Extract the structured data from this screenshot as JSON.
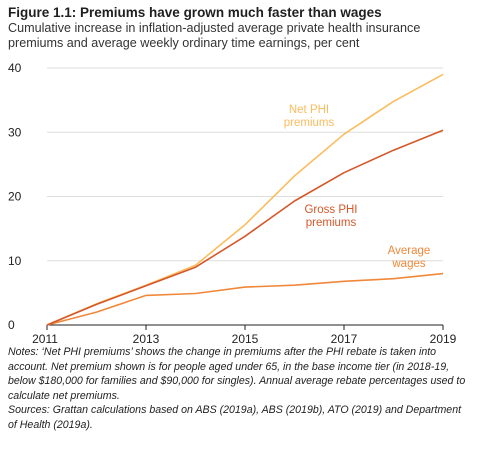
{
  "figure": {
    "title": "Figure 1.1: Premiums have grown much faster than wages",
    "subtitle": "Cumulative increase in inflation-adjusted average private health insurance premiums and average weekly ordinary time earnings, per cent"
  },
  "notes": "Notes: ‘Net PHI premiums’ shows the change in premiums after the PHI rebate is taken into account. Net premium shown is for people aged under 65, in the base income tier (in 2018-19, below $180,000 for families and $90,000 for singles). Annual average rebate percentages used to calculate net premiums.",
  "sources": "Sources: Grattan calculations based on ABS (2019a), ABS (2019b), ATO (2019) and Department of Health (2019a).",
  "chart_data": {
    "type": "line",
    "title": "Figure 1.1: Premiums have grown much faster than wages",
    "xlabel": "",
    "ylabel": "",
    "x": [
      2011,
      2012,
      2013,
      2014,
      2015,
      2016,
      2017,
      2018,
      2019
    ],
    "x_ticks": [
      "2011",
      "2013",
      "2015",
      "2017",
      "2019"
    ],
    "x_tick_values": [
      2011,
      2013,
      2015,
      2017,
      2019
    ],
    "y_ticks": [
      "0",
      "10",
      "20",
      "30",
      "40"
    ],
    "y_tick_values": [
      0,
      10,
      20,
      30,
      40
    ],
    "xlim": [
      2011,
      2019
    ],
    "ylim": [
      0,
      40
    ],
    "grid": "horizontal",
    "series": [
      {
        "name": "Net PHI premiums",
        "label_lines": [
          "Net PHI",
          "premiums"
        ],
        "color": "#fbbc5e",
        "values": [
          0,
          3.3,
          6.2,
          9.3,
          15.6,
          23.2,
          29.7,
          34.8,
          39.0
        ]
      },
      {
        "name": "Gross PHI premiums",
        "label_lines": [
          "Gross PHI",
          "premiums"
        ],
        "color": "#d4582a",
        "values": [
          0,
          3.2,
          6.1,
          9.0,
          13.8,
          19.3,
          23.7,
          27.2,
          30.3
        ]
      },
      {
        "name": "Average wages",
        "label_lines": [
          "Average",
          "wages"
        ],
        "color": "#f0883a",
        "values": [
          0,
          2.0,
          4.6,
          4.9,
          5.9,
          6.2,
          6.8,
          7.2,
          8.0
        ]
      }
    ]
  }
}
